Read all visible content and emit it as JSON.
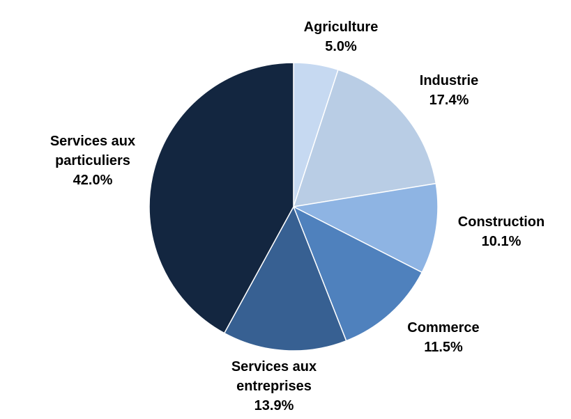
{
  "chart_data": {
    "type": "pie",
    "title": "",
    "start_angle_deg": 90,
    "direction": "clockwise",
    "slices": [
      {
        "name": "Agriculture",
        "value": 5.0,
        "label_lines": [
          "Agriculture"
        ],
        "value_label": "5.0%",
        "color": "#c6d9f1"
      },
      {
        "name": "Industrie",
        "value": 17.4,
        "label_lines": [
          "Industrie"
        ],
        "value_label": "17.4%",
        "color": "#b9cde5"
      },
      {
        "name": "Construction",
        "value": 10.1,
        "label_lines": [
          "Construction"
        ],
        "value_label": "10.1%",
        "color": "#8eb4e3"
      },
      {
        "name": "Commerce",
        "value": 11.5,
        "label_lines": [
          "Commerce"
        ],
        "value_label": "11.5%",
        "color": "#4f81bd"
      },
      {
        "name": "Services aux entreprises",
        "value": 13.9,
        "label_lines": [
          "Services aux",
          "entreprises"
        ],
        "value_label": "13.9%",
        "color": "#376092"
      },
      {
        "name": "Services aux particuliers",
        "value": 42.0,
        "label_lines": [
          "Services aux",
          "particuliers"
        ],
        "value_label": "42.0%",
        "color": "#132640"
      }
    ]
  }
}
